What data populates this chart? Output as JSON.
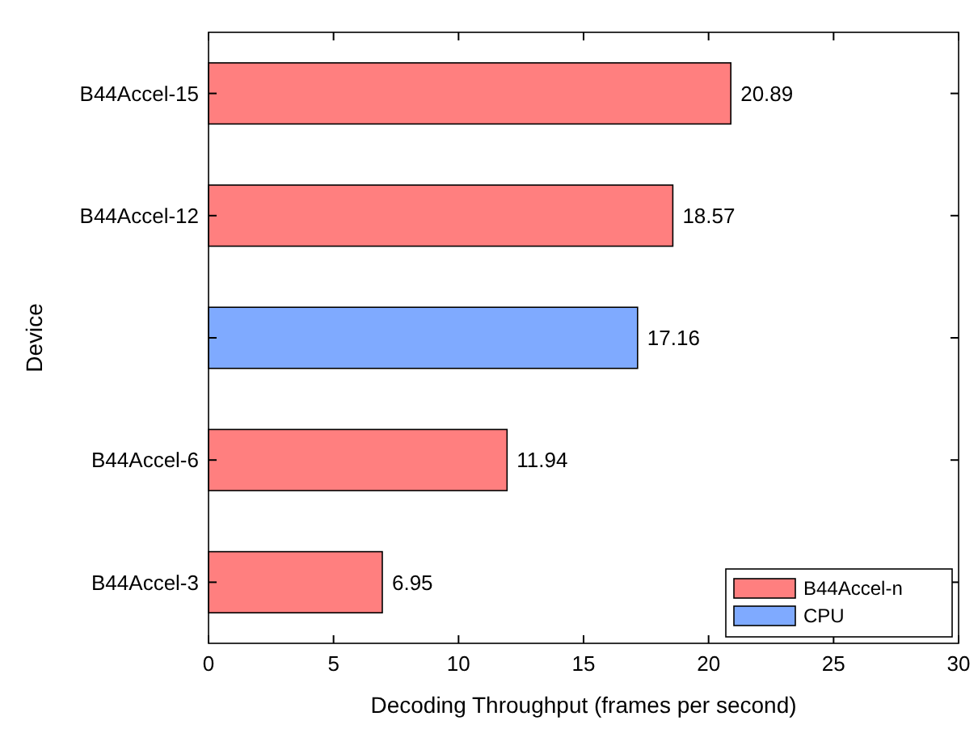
{
  "chart_data": {
    "type": "bar",
    "orientation": "horizontal",
    "xlabel": "Decoding Throughput (frames per second)",
    "ylabel": "Device",
    "categories": [
      "B44Accel-15",
      "B44Accel-12",
      null,
      "B44Accel-6",
      "B44Accel-3"
    ],
    "series": [
      {
        "name": "B44Accel-n",
        "color": "#ff7f7f",
        "values": [
          20.89,
          18.57,
          null,
          11.94,
          6.95
        ]
      },
      {
        "name": "CPU",
        "color": "#7faaff",
        "values": [
          null,
          null,
          17.16,
          null,
          null
        ]
      }
    ],
    "xlim": [
      0,
      30
    ],
    "xticks": [
      0,
      5,
      10,
      15,
      20,
      25,
      30
    ],
    "data_labels": true,
    "legend": "bottom right",
    "grid": false
  }
}
